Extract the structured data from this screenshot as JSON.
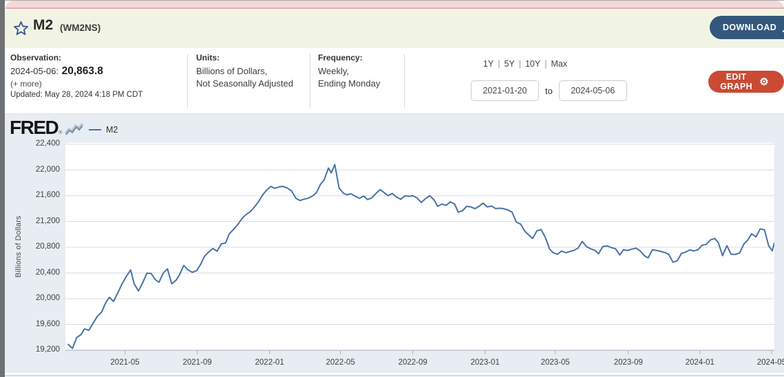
{
  "header": {
    "title": "M2",
    "series_id": "(WM2NS)",
    "download_label": "DOWNLOAD"
  },
  "info": {
    "observation": {
      "label": "Observation:",
      "date": "2024-05-06:",
      "value": "20,863.8",
      "more": "(+ more)",
      "updated": "Updated: May 28, 2024 4:18 PM CDT"
    },
    "units": {
      "label": "Units:",
      "line1": "Billions of Dollars,",
      "line2": "Not Seasonally Adjusted"
    },
    "frequency": {
      "label": "Frequency:",
      "line1": "Weekly,",
      "line2": "Ending Monday"
    },
    "ranges": [
      "1Y",
      "5Y",
      "10Y",
      "Max"
    ],
    "range_separator": "|",
    "date_from": "2021-01-20",
    "to_label": "to",
    "date_to": "2024-05-06",
    "edit_graph_label": "EDIT GRAPH"
  },
  "chart": {
    "logo": "FRED",
    "logo_reg": "®",
    "line_color": "#4572a7",
    "plot_bg": "#ffffff",
    "outer_bg": "#e7edf2",
    "grid_color": "#d9dce0",
    "axis_color": "#b9c0c7"
  },
  "chart_data": {
    "type": "line",
    "title": "M2 (WM2NS)",
    "ylabel": "Billions of Dollars",
    "xlabel": "",
    "x_range": [
      "2021-01-20",
      "2024-05-06"
    ],
    "ylim": [
      19200,
      22400
    ],
    "grid": true,
    "legend_position": "top-left",
    "yticks": [
      {
        "value": 19200,
        "label": "19,200"
      },
      {
        "value": 19600,
        "label": "19,600"
      },
      {
        "value": 20000,
        "label": "20,000"
      },
      {
        "value": 20400,
        "label": "20,400"
      },
      {
        "value": 20800,
        "label": "20,800"
      },
      {
        "value": 21200,
        "label": "21,200"
      },
      {
        "value": 21600,
        "label": "21,600"
      },
      {
        "value": 22000,
        "label": "22,000"
      },
      {
        "value": 22400,
        "label": "22,400"
      }
    ],
    "xticks": [
      {
        "label": "2021-05",
        "f": 0.084
      },
      {
        "label": "2021-09",
        "f": 0.186
      },
      {
        "label": "2022-01",
        "f": 0.288
      },
      {
        "label": "2022-05",
        "f": 0.388
      },
      {
        "label": "2022-09",
        "f": 0.49
      },
      {
        "label": "2023-01",
        "f": 0.592
      },
      {
        "label": "2023-05",
        "f": 0.691
      },
      {
        "label": "2023-09",
        "f": 0.794
      },
      {
        "label": "2024-01",
        "f": 0.895
      },
      {
        "label": "2024-05",
        "f": 0.996
      }
    ],
    "series": [
      {
        "name": "M2",
        "color": "#4572a7",
        "points": [
          [
            0.004,
            19290
          ],
          [
            0.01,
            19228
          ],
          [
            0.016,
            19398
          ],
          [
            0.022,
            19442
          ],
          [
            0.027,
            19532
          ],
          [
            0.033,
            19508
          ],
          [
            0.039,
            19618
          ],
          [
            0.045,
            19726
          ],
          [
            0.051,
            19790
          ],
          [
            0.057,
            19940
          ],
          [
            0.062,
            20021
          ],
          [
            0.068,
            19958
          ],
          [
            0.074,
            20093
          ],
          [
            0.08,
            20233
          ],
          [
            0.086,
            20349
          ],
          [
            0.092,
            20446
          ],
          [
            0.097,
            20234
          ],
          [
            0.103,
            20121
          ],
          [
            0.109,
            20247
          ],
          [
            0.115,
            20398
          ],
          [
            0.121,
            20391
          ],
          [
            0.127,
            20294
          ],
          [
            0.132,
            20257
          ],
          [
            0.138,
            20397
          ],
          [
            0.144,
            20463
          ],
          [
            0.15,
            20233
          ],
          [
            0.156,
            20286
          ],
          [
            0.161,
            20371
          ],
          [
            0.167,
            20517
          ],
          [
            0.173,
            20447
          ],
          [
            0.179,
            20411
          ],
          [
            0.185,
            20435
          ],
          [
            0.191,
            20537
          ],
          [
            0.196,
            20657
          ],
          [
            0.202,
            20726
          ],
          [
            0.208,
            20780
          ],
          [
            0.214,
            20738
          ],
          [
            0.22,
            20852
          ],
          [
            0.226,
            20866
          ],
          [
            0.231,
            21005
          ],
          [
            0.237,
            21075
          ],
          [
            0.243,
            21150
          ],
          [
            0.249,
            21245
          ],
          [
            0.255,
            21310
          ],
          [
            0.26,
            21345
          ],
          [
            0.266,
            21415
          ],
          [
            0.272,
            21500
          ],
          [
            0.278,
            21610
          ],
          [
            0.284,
            21690
          ],
          [
            0.29,
            21745
          ],
          [
            0.295,
            21715
          ],
          [
            0.301,
            21735
          ],
          [
            0.307,
            21745
          ],
          [
            0.313,
            21720
          ],
          [
            0.319,
            21675
          ],
          [
            0.325,
            21560
          ],
          [
            0.331,
            21525
          ],
          [
            0.336,
            21545
          ],
          [
            0.342,
            21560
          ],
          [
            0.348,
            21590
          ],
          [
            0.354,
            21645
          ],
          [
            0.36,
            21780
          ],
          [
            0.365,
            21845
          ],
          [
            0.371,
            22030
          ],
          [
            0.375,
            21955
          ],
          [
            0.38,
            22085
          ],
          [
            0.386,
            21720
          ],
          [
            0.392,
            21640
          ],
          [
            0.397,
            21615
          ],
          [
            0.403,
            21630
          ],
          [
            0.409,
            21590
          ],
          [
            0.415,
            21560
          ],
          [
            0.421,
            21595
          ],
          [
            0.426,
            21540
          ],
          [
            0.432,
            21565
          ],
          [
            0.438,
            21635
          ],
          [
            0.444,
            21695
          ],
          [
            0.45,
            21645
          ],
          [
            0.455,
            21600
          ],
          [
            0.461,
            21635
          ],
          [
            0.467,
            21580
          ],
          [
            0.473,
            21545
          ],
          [
            0.479,
            21600
          ],
          [
            0.485,
            21590
          ],
          [
            0.49,
            21600
          ],
          [
            0.496,
            21565
          ],
          [
            0.502,
            21495
          ],
          [
            0.508,
            21555
          ],
          [
            0.514,
            21600
          ],
          [
            0.52,
            21535
          ],
          [
            0.525,
            21435
          ],
          [
            0.531,
            21470
          ],
          [
            0.537,
            21450
          ],
          [
            0.543,
            21505
          ],
          [
            0.549,
            21470
          ],
          [
            0.554,
            21345
          ],
          [
            0.56,
            21365
          ],
          [
            0.566,
            21435
          ],
          [
            0.572,
            21425
          ],
          [
            0.578,
            21400
          ],
          [
            0.584,
            21440
          ],
          [
            0.589,
            21485
          ],
          [
            0.595,
            21425
          ],
          [
            0.601,
            21440
          ],
          [
            0.607,
            21400
          ],
          [
            0.613,
            21405
          ],
          [
            0.618,
            21398
          ],
          [
            0.624,
            21380
          ],
          [
            0.63,
            21345
          ],
          [
            0.636,
            21190
          ],
          [
            0.642,
            21160
          ],
          [
            0.648,
            21050
          ],
          [
            0.653,
            20995
          ],
          [
            0.659,
            20935
          ],
          [
            0.665,
            21055
          ],
          [
            0.671,
            21075
          ],
          [
            0.677,
            20950
          ],
          [
            0.683,
            20770
          ],
          [
            0.688,
            20715
          ],
          [
            0.694,
            20690
          ],
          [
            0.7,
            20740
          ],
          [
            0.706,
            20715
          ],
          [
            0.712,
            20735
          ],
          [
            0.717,
            20750
          ],
          [
            0.723,
            20785
          ],
          [
            0.729,
            20890
          ],
          [
            0.735,
            20810
          ],
          [
            0.741,
            20775
          ],
          [
            0.747,
            20750
          ],
          [
            0.752,
            20700
          ],
          [
            0.758,
            20810
          ],
          [
            0.764,
            20820
          ],
          [
            0.77,
            20795
          ],
          [
            0.776,
            20775
          ],
          [
            0.782,
            20680
          ],
          [
            0.787,
            20760
          ],
          [
            0.793,
            20750
          ],
          [
            0.799,
            20770
          ],
          [
            0.805,
            20785
          ],
          [
            0.811,
            20740
          ],
          [
            0.817,
            20665
          ],
          [
            0.822,
            20635
          ],
          [
            0.828,
            20760
          ],
          [
            0.834,
            20750
          ],
          [
            0.84,
            20735
          ],
          [
            0.846,
            20715
          ],
          [
            0.851,
            20690
          ],
          [
            0.857,
            20567
          ],
          [
            0.863,
            20590
          ],
          [
            0.869,
            20705
          ],
          [
            0.875,
            20725
          ],
          [
            0.881,
            20760
          ],
          [
            0.886,
            20740
          ],
          [
            0.892,
            20760
          ],
          [
            0.898,
            20830
          ],
          [
            0.904,
            20845
          ],
          [
            0.91,
            20915
          ],
          [
            0.916,
            20935
          ],
          [
            0.921,
            20870
          ],
          [
            0.927,
            20669
          ],
          [
            0.933,
            20825
          ],
          [
            0.939,
            20690
          ],
          [
            0.945,
            20688
          ],
          [
            0.951,
            20710
          ],
          [
            0.957,
            20850
          ],
          [
            0.962,
            20905
          ],
          [
            0.968,
            21010
          ],
          [
            0.974,
            20960
          ],
          [
            0.98,
            21085
          ],
          [
            0.986,
            21070
          ],
          [
            0.992,
            20820
          ],
          [
            0.997,
            20745
          ],
          [
            1.0,
            20864
          ]
        ]
      }
    ]
  }
}
